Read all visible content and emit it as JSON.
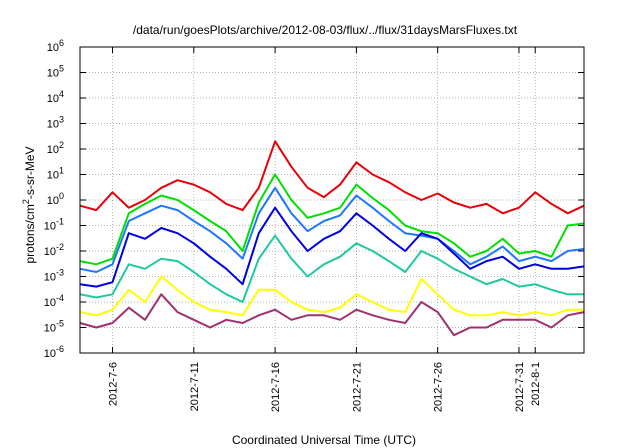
{
  "chart_data": {
    "type": "line",
    "title": "/data/run/goesPlots/archive/2012-08-03/flux/../flux/31daysMarsFluxes.txt",
    "xlabel": "Coordinated Universal Time (UTC)",
    "ylabel_base": "protons/cm",
    "ylabel_sup": "2",
    "ylabel_rest": "-s-sr-MeV",
    "yscale": "log",
    "ylim": [
      -6,
      6
    ],
    "xlim": [
      "2012-07-04",
      "2012-08-04"
    ],
    "grid": true,
    "y_ticks": [
      {
        "value": 6,
        "base": "10",
        "exp": "6"
      },
      {
        "value": 5,
        "base": "10",
        "exp": "5"
      },
      {
        "value": 4,
        "base": "10",
        "exp": "4"
      },
      {
        "value": 3,
        "base": "10",
        "exp": "3"
      },
      {
        "value": 2,
        "base": "10",
        "exp": "2"
      },
      {
        "value": 1,
        "base": "10",
        "exp": "1"
      },
      {
        "value": 0,
        "base": "10",
        "exp": "0"
      },
      {
        "value": -1,
        "base": "10",
        "exp": "-1"
      },
      {
        "value": -2,
        "base": "10",
        "exp": "-2"
      },
      {
        "value": -3,
        "base": "10",
        "exp": "-3"
      },
      {
        "value": -4,
        "base": "10",
        "exp": "-4"
      },
      {
        "value": -5,
        "base": "10",
        "exp": "-5"
      },
      {
        "value": -6,
        "base": "10",
        "exp": "-6"
      }
    ],
    "x_ticks": [
      {
        "date": "2012-07-06",
        "label": "2012-7-6"
      },
      {
        "date": "2012-07-11",
        "label": "2012-7-11"
      },
      {
        "date": "2012-07-16",
        "label": "2012-7-16"
      },
      {
        "date": "2012-07-21",
        "label": "2012-7-21"
      },
      {
        "date": "2012-07-26",
        "label": "2012-7-26"
      },
      {
        "date": "2012-07-31",
        "label": "2012-7-31"
      },
      {
        "date": "2012-08-01",
        "label": "2012-8-1"
      }
    ],
    "series": [
      {
        "color": "#e8000b",
        "x": [
          "2012-07-04",
          "2012-07-05",
          "2012-07-06",
          "2012-07-07",
          "2012-07-08",
          "2012-07-09",
          "2012-07-10",
          "2012-07-11",
          "2012-07-12",
          "2012-07-13",
          "2012-07-14",
          "2012-07-15",
          "2012-07-16",
          "2012-07-17",
          "2012-07-18",
          "2012-07-19",
          "2012-07-20",
          "2012-07-21",
          "2012-07-22",
          "2012-07-23",
          "2012-07-24",
          "2012-07-25",
          "2012-07-26",
          "2012-07-27",
          "2012-07-28",
          "2012-07-29",
          "2012-07-30",
          "2012-07-31",
          "2012-08-01",
          "2012-08-02",
          "2012-08-03",
          "2012-08-04"
        ],
        "y": [
          0.6,
          0.4,
          2,
          0.5,
          1,
          3,
          6,
          4,
          2,
          0.7,
          0.4,
          3,
          200,
          20,
          3,
          1.3,
          4,
          30,
          10,
          5,
          2,
          1,
          1.8,
          0.8,
          0.5,
          0.7,
          0.3,
          0.5,
          2,
          0.7,
          0.3,
          0.6
        ]
      },
      {
        "color": "#00e000",
        "x": [
          "2012-07-04",
          "2012-07-05",
          "2012-07-06",
          "2012-07-07",
          "2012-07-08",
          "2012-07-09",
          "2012-07-10",
          "2012-07-11",
          "2012-07-12",
          "2012-07-13",
          "2012-07-14",
          "2012-07-15",
          "2012-07-16",
          "2012-07-17",
          "2012-07-18",
          "2012-07-19",
          "2012-07-20",
          "2012-07-21",
          "2012-07-22",
          "2012-07-23",
          "2012-07-24",
          "2012-07-25",
          "2012-07-26",
          "2012-07-27",
          "2012-07-28",
          "2012-07-29",
          "2012-07-30",
          "2012-07-31",
          "2012-08-01",
          "2012-08-02",
          "2012-08-03",
          "2012-08-04"
        ],
        "y": [
          0.004,
          0.003,
          0.005,
          0.3,
          0.7,
          1.5,
          1,
          0.4,
          0.15,
          0.06,
          0.01,
          0.8,
          10,
          1,
          0.2,
          0.3,
          0.5,
          4,
          1.2,
          0.4,
          0.1,
          0.06,
          0.05,
          0.02,
          0.006,
          0.01,
          0.03,
          0.008,
          0.01,
          0.006,
          0.1,
          0.12
        ]
      },
      {
        "color": "#1e78ff",
        "x": [
          "2012-07-04",
          "2012-07-05",
          "2012-07-06",
          "2012-07-07",
          "2012-07-08",
          "2012-07-09",
          "2012-07-10",
          "2012-07-11",
          "2012-07-12",
          "2012-07-13",
          "2012-07-14",
          "2012-07-15",
          "2012-07-16",
          "2012-07-17",
          "2012-07-18",
          "2012-07-19",
          "2012-07-20",
          "2012-07-21",
          "2012-07-22",
          "2012-07-23",
          "2012-07-24",
          "2012-07-25",
          "2012-07-26",
          "2012-07-27",
          "2012-07-28",
          "2012-07-29",
          "2012-07-30",
          "2012-07-31",
          "2012-08-01",
          "2012-08-02",
          "2012-08-03",
          "2012-08-04"
        ],
        "y": [
          0.002,
          0.0015,
          0.003,
          0.15,
          0.3,
          0.6,
          0.4,
          0.15,
          0.06,
          0.02,
          0.005,
          0.3,
          3,
          0.3,
          0.06,
          0.15,
          0.25,
          1.5,
          0.5,
          0.15,
          0.05,
          0.04,
          0.03,
          0.01,
          0.003,
          0.006,
          0.015,
          0.004,
          0.006,
          0.004,
          0.01,
          0.012
        ]
      },
      {
        "color": "#0000e0",
        "x": [
          "2012-07-04",
          "2012-07-05",
          "2012-07-06",
          "2012-07-07",
          "2012-07-08",
          "2012-07-09",
          "2012-07-10",
          "2012-07-11",
          "2012-07-12",
          "2012-07-13",
          "2012-07-14",
          "2012-07-15",
          "2012-07-16",
          "2012-07-17",
          "2012-07-18",
          "2012-07-19",
          "2012-07-20",
          "2012-07-21",
          "2012-07-22",
          "2012-07-23",
          "2012-07-24",
          "2012-07-25",
          "2012-07-26",
          "2012-07-27",
          "2012-07-28",
          "2012-07-29",
          "2012-07-30",
          "2012-07-31",
          "2012-08-01",
          "2012-08-02",
          "2012-08-03",
          "2012-08-04"
        ],
        "y": [
          0.0005,
          0.0004,
          0.0006,
          0.05,
          0.03,
          0.08,
          0.05,
          0.02,
          0.006,
          0.002,
          0.0005,
          0.05,
          0.5,
          0.06,
          0.01,
          0.03,
          0.06,
          0.3,
          0.1,
          0.03,
          0.01,
          0.05,
          0.03,
          0.008,
          0.002,
          0.004,
          0.006,
          0.002,
          0.003,
          0.002,
          0.002,
          0.0025
        ]
      },
      {
        "color": "#20c8a0",
        "x": [
          "2012-07-04",
          "2012-07-05",
          "2012-07-06",
          "2012-07-07",
          "2012-07-08",
          "2012-07-09",
          "2012-07-10",
          "2012-07-11",
          "2012-07-12",
          "2012-07-13",
          "2012-07-14",
          "2012-07-15",
          "2012-07-16",
          "2012-07-17",
          "2012-07-18",
          "2012-07-19",
          "2012-07-20",
          "2012-07-21",
          "2012-07-22",
          "2012-07-23",
          "2012-07-24",
          "2012-07-25",
          "2012-07-26",
          "2012-07-27",
          "2012-07-28",
          "2012-07-29",
          "2012-07-30",
          "2012-07-31",
          "2012-08-01",
          "2012-08-02",
          "2012-08-03",
          "2012-08-04"
        ],
        "y": [
          0.0002,
          0.00015,
          0.0002,
          0.003,
          0.002,
          0.005,
          0.004,
          0.0015,
          0.0005,
          0.0002,
          0.0001,
          0.005,
          0.04,
          0.005,
          0.001,
          0.003,
          0.006,
          0.02,
          0.01,
          0.004,
          0.0015,
          0.01,
          0.005,
          0.002,
          0.001,
          0.0005,
          0.0008,
          0.0004,
          0.0005,
          0.0003,
          0.0002,
          0.0002
        ]
      },
      {
        "color": "#ffff00",
        "x": [
          "2012-07-04",
          "2012-07-05",
          "2012-07-06",
          "2012-07-07",
          "2012-07-08",
          "2012-07-09",
          "2012-07-10",
          "2012-07-11",
          "2012-07-12",
          "2012-07-13",
          "2012-07-14",
          "2012-07-15",
          "2012-07-16",
          "2012-07-17",
          "2012-07-18",
          "2012-07-19",
          "2012-07-20",
          "2012-07-21",
          "2012-07-22",
          "2012-07-23",
          "2012-07-24",
          "2012-07-25",
          "2012-07-26",
          "2012-07-27",
          "2012-07-28",
          "2012-07-29",
          "2012-07-30",
          "2012-07-31",
          "2012-08-01",
          "2012-08-02",
          "2012-08-03",
          "2012-08-04"
        ],
        "y": [
          4e-05,
          3e-05,
          5e-05,
          0.0003,
          0.0001,
          0.001,
          0.0003,
          0.0001,
          5e-05,
          4e-05,
          3e-05,
          0.0003,
          0.0003,
          0.0001,
          5e-05,
          4e-05,
          6e-05,
          0.0002,
          0.0001,
          5e-05,
          4e-05,
          0.0008,
          0.0002,
          5e-05,
          3e-05,
          3e-05,
          4e-05,
          3e-05,
          4e-05,
          3e-05,
          5e-05,
          5e-05
        ]
      },
      {
        "color": "#a03070",
        "x": [
          "2012-07-04",
          "2012-07-05",
          "2012-07-06",
          "2012-07-07",
          "2012-07-08",
          "2012-07-09",
          "2012-07-10",
          "2012-07-11",
          "2012-07-12",
          "2012-07-13",
          "2012-07-14",
          "2012-07-15",
          "2012-07-16",
          "2012-07-17",
          "2012-07-18",
          "2012-07-19",
          "2012-07-20",
          "2012-07-21",
          "2012-07-22",
          "2012-07-23",
          "2012-07-24",
          "2012-07-25",
          "2012-07-26",
          "2012-07-27",
          "2012-07-28",
          "2012-07-29",
          "2012-07-30",
          "2012-07-31",
          "2012-08-01",
          "2012-08-02",
          "2012-08-03",
          "2012-08-04"
        ],
        "y": [
          1.5e-05,
          1e-05,
          1.5e-05,
          6e-05,
          2e-05,
          0.0002,
          4e-05,
          2e-05,
          1e-05,
          2e-05,
          1.5e-05,
          3e-05,
          5e-05,
          2e-05,
          3e-05,
          3e-05,
          2e-05,
          5e-05,
          3e-05,
          2e-05,
          1.5e-05,
          0.0001,
          4e-05,
          5e-06,
          1e-05,
          1e-05,
          2e-05,
          2e-05,
          2e-05,
          1e-05,
          3e-05,
          4e-05
        ]
      }
    ]
  }
}
